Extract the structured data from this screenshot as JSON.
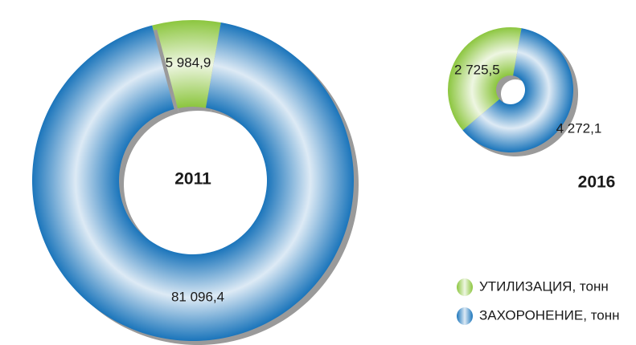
{
  "chart_data": {
    "type": "donut",
    "categories": [
      "2011",
      "2016"
    ],
    "series": [
      {
        "name": "УТИЛИЗАЦИЯ, тонн",
        "color": "#8cc63f",
        "values": [
          5984.9,
          2725.5
        ],
        "value_labels": [
          "5 984,9",
          "2 725,5"
        ]
      },
      {
        "name": "ЗАХОРОНЕНИЕ, тонн",
        "color": "#1b75bb",
        "values": [
          81096.4,
          4272.1
        ],
        "value_labels": [
          "81 096,4",
          "4 272,1"
        ]
      }
    ]
  }
}
